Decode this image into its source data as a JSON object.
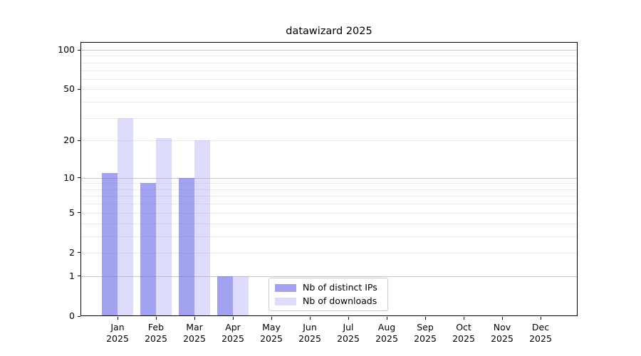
{
  "chart_data": {
    "type": "bar",
    "title": "datawizard 2025",
    "year_label": "2025",
    "categories": [
      "Jan",
      "Feb",
      "Mar",
      "Apr",
      "May",
      "Jun",
      "Jul",
      "Aug",
      "Sep",
      "Oct",
      "Nov",
      "Dec"
    ],
    "series": [
      {
        "name": "Nb of distinct IPs",
        "color": "rgba(100,100,230,0.6)",
        "values": [
          11,
          9,
          10,
          1,
          0,
          0,
          0,
          0,
          0,
          0,
          0,
          0
        ]
      },
      {
        "name": "Nb of downloads",
        "color": "rgba(170,170,245,0.4)",
        "values": [
          30,
          21,
          20,
          1,
          0,
          0,
          0,
          0,
          0,
          0,
          0,
          0
        ]
      }
    ],
    "xlabel": "",
    "ylabel": "",
    "yscale": "log1p",
    "ylim": [
      0,
      114.7
    ],
    "yticks": [
      100,
      50,
      20,
      10,
      5,
      2,
      1,
      0
    ],
    "major_gridlines": [
      1,
      10,
      100
    ],
    "minor_gridlines": [
      2,
      3,
      4,
      5,
      6,
      7,
      8,
      9,
      20,
      30,
      40,
      50,
      60,
      70,
      80,
      90
    ],
    "grid": true,
    "legend_position": "lower center"
  },
  "colors": {
    "background": "#ffffff",
    "spine": "#000000",
    "grid_major": "#c8c8c8",
    "grid_minor": "#eaeaea",
    "legend_border": "#cccccc",
    "text": "#000000"
  }
}
